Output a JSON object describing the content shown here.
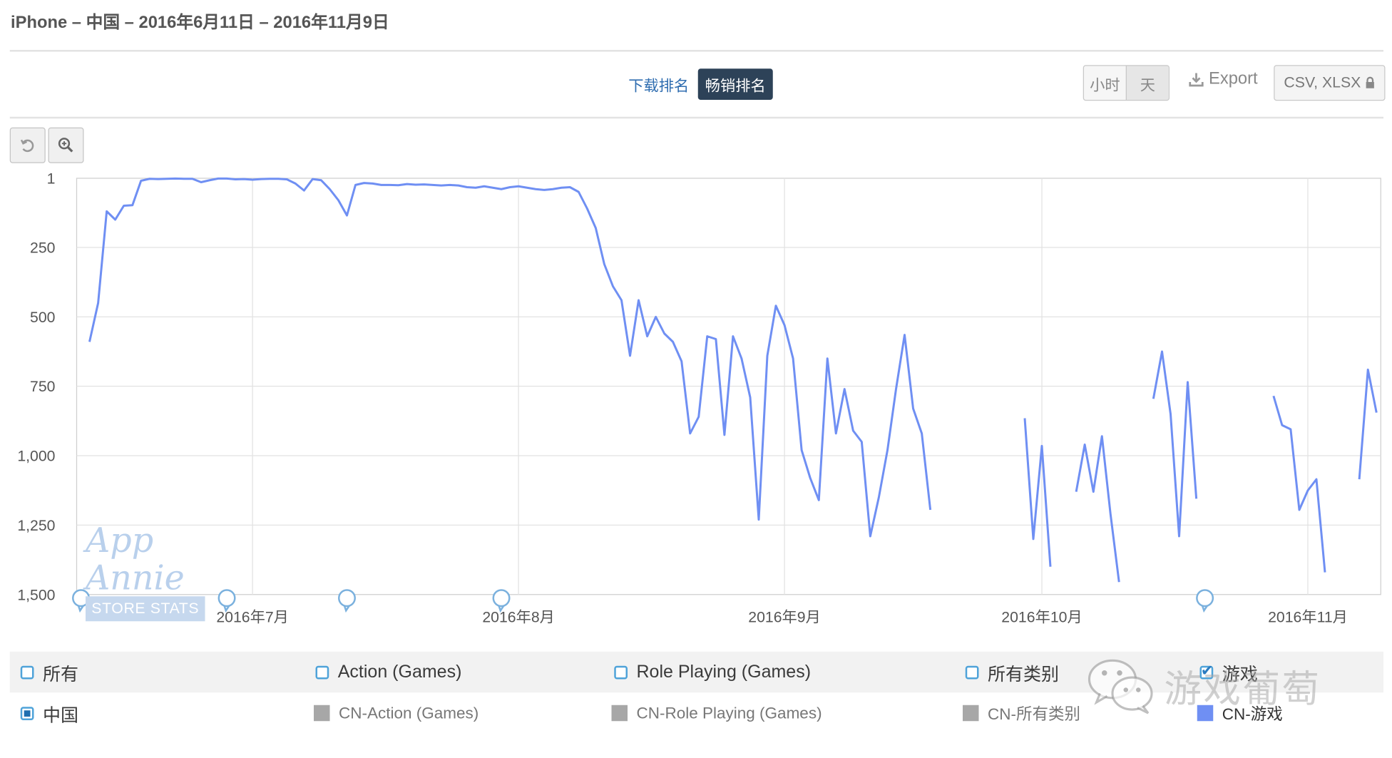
{
  "header": {
    "title": "iPhone – 中国 – 2016年6月11日 – 2016年11月9日"
  },
  "rank_tabs": [
    {
      "label": "下载排名",
      "active": false
    },
    {
      "label": "畅销排名",
      "active": true
    }
  ],
  "granularity": {
    "hour": "小时",
    "day": "天",
    "selected": "天"
  },
  "export": {
    "label": "Export",
    "formats": "CSV, XLSX"
  },
  "toolbar": {
    "reset_icon": "undo-icon",
    "zoom_icon": "zoom-in-icon"
  },
  "watermark": {
    "brand": "App Annie",
    "sub": "STORE STATS"
  },
  "wechat_watermark": {
    "text": "游戏葡萄"
  },
  "colors": {
    "line": "#6f8ff3",
    "grid": "#dddddd",
    "title_bar": "#2d4258"
  },
  "legend": {
    "filters": [
      {
        "label": "所有",
        "checked": false
      },
      {
        "label": "Action (Games)",
        "checked": false
      },
      {
        "label": "Role Playing (Games)",
        "checked": false
      },
      {
        "label": "所有类别",
        "checked": false
      },
      {
        "label": "游戏",
        "checked": true
      }
    ],
    "country": {
      "label": "中国",
      "checked": true
    },
    "series": [
      {
        "label": "CN-Action (Games)",
        "color": "#a7a7a7"
      },
      {
        "label": "CN-Role Playing (Games)",
        "color": "#a7a7a7"
      },
      {
        "label": "CN-所有类别",
        "color": "#a7a7a7"
      },
      {
        "label": "CN-游戏",
        "color": "#6f8ff3"
      }
    ]
  },
  "chart_data": {
    "type": "line",
    "title": "",
    "xlabel": "",
    "ylabel": "",
    "x_start": "2016-06-11",
    "x_end": "2016-11-09",
    "y_inverted": true,
    "ylim": [
      1,
      1500
    ],
    "y_ticks": [
      "1",
      "250",
      "500",
      "750",
      "1,000",
      "1,250",
      "1,500"
    ],
    "x_ticks": [
      {
        "date": "2016-07-01",
        "label": "2016年7月"
      },
      {
        "date": "2016-08-01",
        "label": "2016年8月"
      },
      {
        "date": "2016-09-01",
        "label": "2016年9月"
      },
      {
        "date": "2016-10-01",
        "label": "2016年10月"
      },
      {
        "date": "2016-11-01",
        "label": "2016年11月"
      }
    ],
    "grid": true,
    "event_marker_dates": [
      "2016-06-11",
      "2016-06-28",
      "2016-07-12",
      "2016-07-30",
      "2016-10-20"
    ],
    "series": [
      {
        "name": "CN-游戏",
        "color": "#6f8ff3",
        "segments": [
          [
            [
              "2016-06-12",
              590
            ],
            [
              "2016-06-13",
              450
            ],
            [
              "2016-06-14",
              120
            ],
            [
              "2016-06-15",
              150
            ],
            [
              "2016-06-16",
              100
            ],
            [
              "2016-06-17",
              98
            ],
            [
              "2016-06-18",
              10
            ],
            [
              "2016-06-19",
              3
            ],
            [
              "2016-06-20",
              4
            ],
            [
              "2016-06-21",
              3
            ],
            [
              "2016-06-22",
              2
            ],
            [
              "2016-06-23",
              3
            ],
            [
              "2016-06-24",
              3
            ],
            [
              "2016-06-25",
              15
            ],
            [
              "2016-06-26",
              8
            ],
            [
              "2016-06-27",
              2
            ],
            [
              "2016-06-28",
              2
            ],
            [
              "2016-06-29",
              5
            ],
            [
              "2016-06-30",
              4
            ],
            [
              "2016-07-01",
              6
            ],
            [
              "2016-07-02",
              4
            ],
            [
              "2016-07-03",
              3
            ],
            [
              "2016-07-04",
              3
            ],
            [
              "2016-07-05",
              5
            ],
            [
              "2016-07-06",
              20
            ],
            [
              "2016-07-07",
              45
            ],
            [
              "2016-07-08",
              4
            ],
            [
              "2016-07-09",
              8
            ],
            [
              "2016-07-10",
              40
            ],
            [
              "2016-07-11",
              80
            ],
            [
              "2016-07-12",
              135
            ],
            [
              "2016-07-13",
              25
            ],
            [
              "2016-07-14",
              18
            ],
            [
              "2016-07-15",
              20
            ],
            [
              "2016-07-16",
              25
            ],
            [
              "2016-07-17",
              25
            ],
            [
              "2016-07-18",
              26
            ],
            [
              "2016-07-19",
              22
            ],
            [
              "2016-07-20",
              24
            ],
            [
              "2016-07-21",
              23
            ],
            [
              "2016-07-22",
              25
            ],
            [
              "2016-07-23",
              27
            ],
            [
              "2016-07-24",
              25
            ],
            [
              "2016-07-25",
              27
            ],
            [
              "2016-07-26",
              33
            ],
            [
              "2016-07-27",
              35
            ],
            [
              "2016-07-28",
              30
            ],
            [
              "2016-07-29",
              35
            ],
            [
              "2016-07-30",
              40
            ],
            [
              "2016-07-31",
              33
            ],
            [
              "2016-08-01",
              30
            ],
            [
              "2016-08-02",
              35
            ],
            [
              "2016-08-03",
              40
            ],
            [
              "2016-08-04",
              43
            ],
            [
              "2016-08-05",
              40
            ],
            [
              "2016-08-06",
              35
            ],
            [
              "2016-08-07",
              33
            ],
            [
              "2016-08-08",
              50
            ],
            [
              "2016-08-09",
              110
            ],
            [
              "2016-08-10",
              180
            ],
            [
              "2016-08-11",
              310
            ],
            [
              "2016-08-12",
              390
            ],
            [
              "2016-08-13",
              440
            ],
            [
              "2016-08-14",
              640
            ],
            [
              "2016-08-15",
              440
            ],
            [
              "2016-08-16",
              570
            ],
            [
              "2016-08-17",
              500
            ],
            [
              "2016-08-18",
              560
            ],
            [
              "2016-08-19",
              590
            ],
            [
              "2016-08-20",
              660
            ],
            [
              "2016-08-21",
              920
            ],
            [
              "2016-08-22",
              860
            ],
            [
              "2016-08-23",
              570
            ],
            [
              "2016-08-24",
              580
            ],
            [
              "2016-08-25",
              925
            ],
            [
              "2016-08-26",
              570
            ],
            [
              "2016-08-27",
              650
            ],
            [
              "2016-08-28",
              790
            ],
            [
              "2016-08-29",
              1230
            ],
            [
              "2016-08-30",
              640
            ],
            [
              "2016-08-31",
              460
            ],
            [
              "2016-09-01",
              530
            ],
            [
              "2016-09-02",
              650
            ],
            [
              "2016-09-03",
              980
            ],
            [
              "2016-09-04",
              1080
            ],
            [
              "2016-09-05",
              1160
            ],
            [
              "2016-09-06",
              650
            ],
            [
              "2016-09-07",
              920
            ],
            [
              "2016-09-08",
              760
            ],
            [
              "2016-09-09",
              910
            ],
            [
              "2016-09-10",
              950
            ],
            [
              "2016-09-11",
              1290
            ],
            [
              "2016-09-12",
              1150
            ],
            [
              "2016-09-13",
              980
            ],
            [
              "2016-09-14",
              760
            ],
            [
              "2016-09-15",
              565
            ],
            [
              "2016-09-16",
              830
            ],
            [
              "2016-09-17",
              920
            ],
            [
              "2016-09-18",
              1195
            ]
          ],
          [
            [
              "2016-09-29",
              865
            ],
            [
              "2016-09-30",
              1300
            ],
            [
              "2016-10-01",
              965
            ],
            [
              "2016-10-02",
              1400
            ]
          ],
          [
            [
              "2016-10-05",
              1130
            ],
            [
              "2016-10-06",
              960
            ],
            [
              "2016-10-07",
              1130
            ],
            [
              "2016-10-08",
              930
            ],
            [
              "2016-10-09",
              1210
            ],
            [
              "2016-10-10",
              1455
            ]
          ],
          [
            [
              "2016-10-14",
              795
            ],
            [
              "2016-10-15",
              625
            ],
            [
              "2016-10-16",
              850
            ],
            [
              "2016-10-17",
              1290
            ],
            [
              "2016-10-18",
              735
            ],
            [
              "2016-10-19",
              1155
            ]
          ],
          [
            [
              "2016-10-28",
              785
            ],
            [
              "2016-10-29",
              890
            ],
            [
              "2016-10-30",
              905
            ],
            [
              "2016-10-31",
              1195
            ],
            [
              "2016-11-01",
              1125
            ],
            [
              "2016-11-02",
              1085
            ],
            [
              "2016-11-03",
              1420
            ]
          ],
          [
            [
              "2016-11-07",
              1085
            ],
            [
              "2016-11-08",
              690
            ],
            [
              "2016-11-09",
              845
            ]
          ]
        ]
      }
    ]
  }
}
